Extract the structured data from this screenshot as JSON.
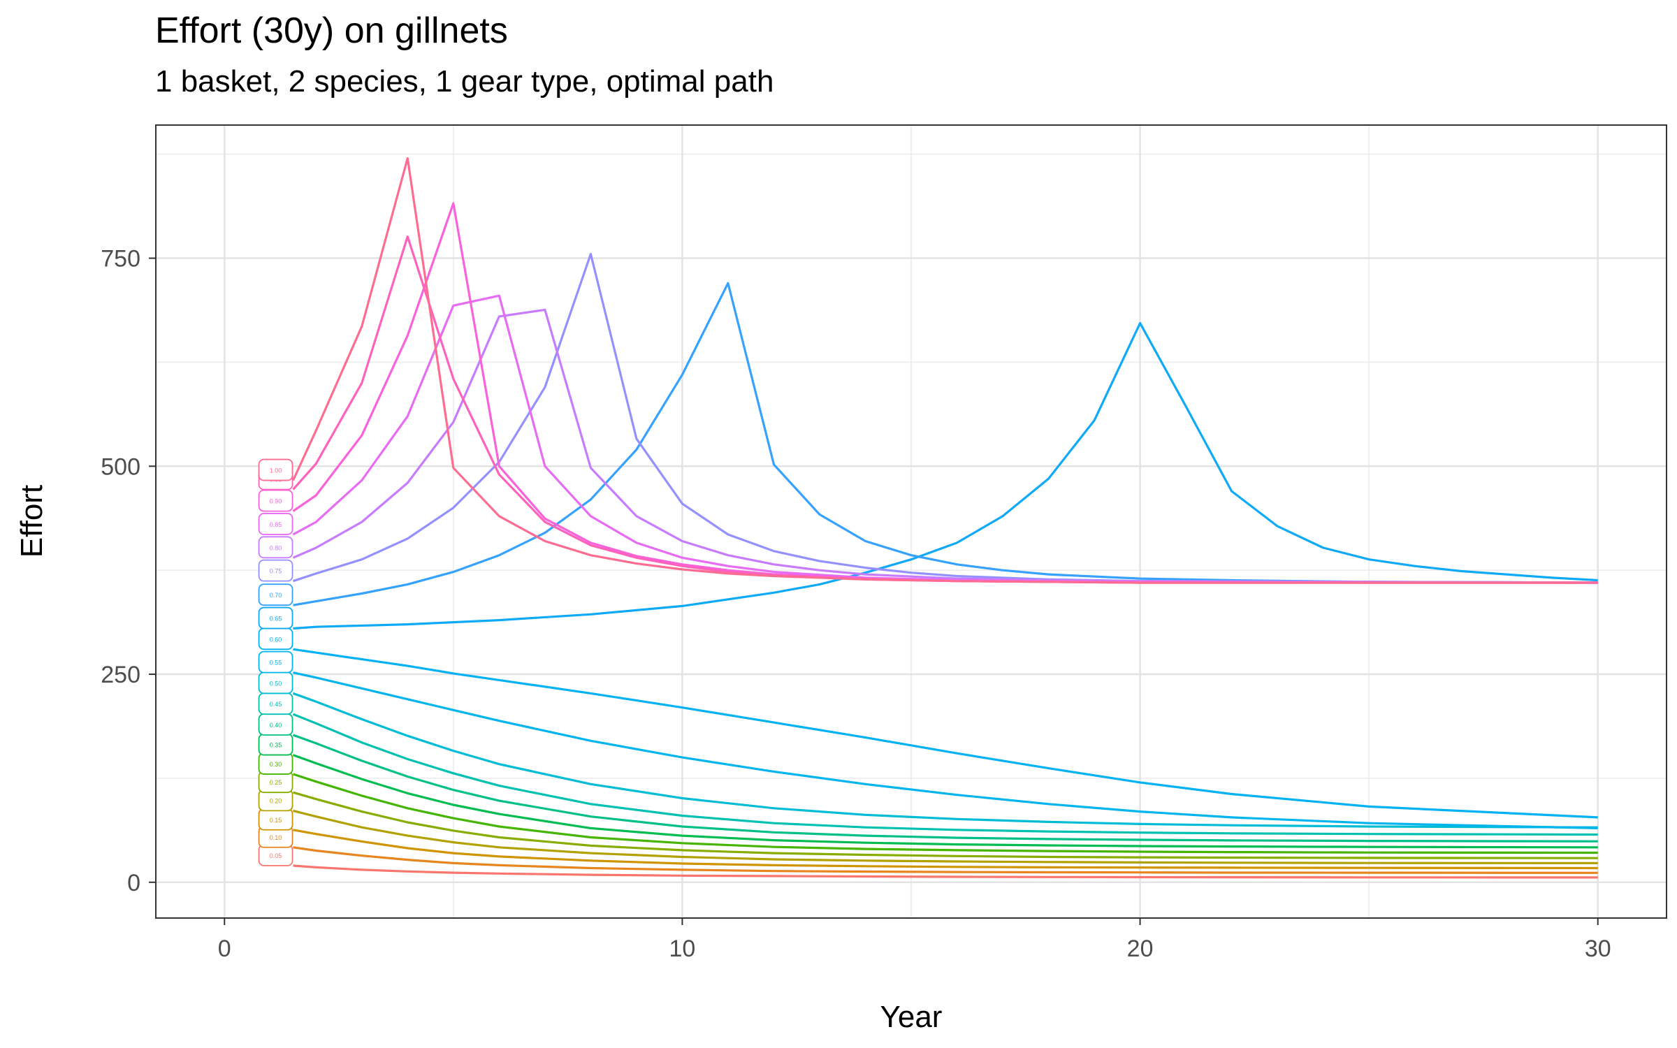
{
  "chart_data": {
    "type": "line",
    "title": "Effort (30y) on gillnets",
    "subtitle": "1 basket, 2 species, 1 gear type, optimal path",
    "xlabel": "Year",
    "ylabel": "Effort",
    "xlim": [
      -1.5,
      31.5
    ],
    "ylim": [
      -43,
      910
    ],
    "x_ticks": [
      0,
      10,
      20,
      30
    ],
    "y_ticks": [
      0,
      250,
      500,
      750
    ],
    "grid": true,
    "legend": "none",
    "series": [
      {
        "name": "0.05",
        "color": "#F8766D",
        "x": [
          1.5,
          2,
          3,
          4,
          5,
          6,
          8,
          10,
          12,
          14,
          16,
          18,
          20,
          22,
          25,
          30
        ],
        "values": [
          20,
          18,
          15,
          13,
          11.5,
          10.5,
          9,
          8,
          7.5,
          7,
          6.5,
          6.3,
          6.1,
          6,
          5.9,
          5.8
        ]
      },
      {
        "name": "0.10",
        "color": "#E7851E",
        "x": [
          1.5,
          2,
          3,
          4,
          5,
          6,
          8,
          10,
          12,
          14,
          16,
          18,
          20,
          22,
          25,
          30
        ],
        "values": [
          42,
          38,
          32,
          27,
          23,
          20.5,
          17,
          15,
          13.5,
          12.8,
          12.3,
          12,
          11.8,
          11.6,
          11.5,
          11.3
        ]
      },
      {
        "name": "0.15",
        "color": "#D09400",
        "x": [
          1.5,
          2,
          3,
          4,
          5,
          6,
          8,
          10,
          12,
          14,
          16,
          18,
          20,
          22,
          25,
          30
        ],
        "values": [
          63,
          58,
          49,
          41,
          35,
          31,
          26,
          22.5,
          20.5,
          19.3,
          18.5,
          18,
          17.7,
          17.5,
          17.3,
          17
        ]
      },
      {
        "name": "0.20",
        "color": "#B2A100",
        "x": [
          1.5,
          2,
          3,
          4,
          5,
          6,
          8,
          10,
          12,
          14,
          16,
          18,
          20,
          22,
          25,
          30
        ],
        "values": [
          86,
          79,
          66,
          56,
          48,
          42,
          35,
          30.5,
          27.5,
          26,
          25,
          24.3,
          23.8,
          23.5,
          23.2,
          23
        ]
      },
      {
        "name": "0.25",
        "color": "#89AC00",
        "x": [
          1.5,
          2,
          3,
          4,
          5,
          6,
          8,
          10,
          12,
          14,
          16,
          18,
          20,
          22,
          25,
          30
        ],
        "values": [
          108,
          100,
          85,
          72,
          62,
          54,
          44,
          38.5,
          35,
          33,
          31.5,
          30.5,
          30,
          29.6,
          29.3,
          29
        ]
      },
      {
        "name": "0.30",
        "color": "#45B500",
        "x": [
          1.5,
          2,
          3,
          4,
          5,
          6,
          8,
          10,
          12,
          14,
          16,
          18,
          20,
          22,
          25,
          30
        ],
        "values": [
          130,
          121,
          104,
          89,
          77,
          67,
          54,
          47,
          42.5,
          40,
          38.5,
          37.5,
          36.8,
          36.3,
          35.8,
          35.5
        ]
      },
      {
        "name": "0.35",
        "color": "#00BC51",
        "x": [
          1.5,
          2,
          3,
          4,
          5,
          6,
          8,
          10,
          12,
          14,
          16,
          18,
          20,
          22,
          25,
          30
        ],
        "values": [
          153,
          143,
          124,
          107,
          93,
          82,
          65,
          56,
          50.5,
          47.5,
          45.5,
          44.3,
          43.5,
          43,
          42.5,
          42
        ]
      },
      {
        "name": "0.40",
        "color": "#00C087",
        "x": [
          1.5,
          2,
          3,
          4,
          5,
          6,
          8,
          10,
          12,
          14,
          16,
          18,
          20,
          22,
          25,
          30
        ],
        "values": [
          177,
          167,
          146,
          127,
          111,
          98,
          79,
          67,
          60,
          56,
          53.5,
          52,
          51,
          50.3,
          49.7,
          49.2
        ]
      },
      {
        "name": "0.45",
        "color": "#00C0B2",
        "x": [
          1.5,
          2,
          3,
          4,
          5,
          6,
          8,
          10,
          12,
          14,
          16,
          18,
          20,
          22,
          25,
          30
        ],
        "values": [
          202,
          191,
          168,
          148,
          131,
          116,
          94,
          80,
          71,
          66,
          63,
          61,
          59.7,
          58.8,
          58,
          57.3
        ]
      },
      {
        "name": "0.50",
        "color": "#00BCD6",
        "x": [
          1.5,
          2,
          3,
          4,
          5,
          6,
          8,
          10,
          12,
          14,
          16,
          18,
          20,
          22,
          25,
          30
        ],
        "values": [
          227,
          217,
          196,
          176,
          158,
          142,
          118,
          101,
          89,
          81,
          76,
          72.5,
          70,
          68.5,
          67,
          66
        ]
      },
      {
        "name": "0.55",
        "color": "#00B5EE",
        "x": [
          1.5,
          2,
          3,
          4,
          5,
          6,
          8,
          10,
          12,
          14,
          16,
          18,
          20,
          22,
          25,
          30
        ],
        "values": [
          252,
          246,
          233,
          220,
          207,
          194,
          170,
          150,
          133,
          118,
          105,
          94,
          85,
          78,
          71,
          65
        ]
      },
      {
        "name": "0.60",
        "color": "#00B2F3",
        "x": [
          1.5,
          2,
          3,
          4,
          5,
          6,
          8,
          10,
          12,
          14,
          16,
          18,
          20,
          22,
          25,
          30
        ],
        "values": [
          280,
          276,
          268,
          260,
          251,
          243,
          227,
          210,
          192,
          174,
          155,
          137,
          120,
          106,
          91,
          78
        ]
      },
      {
        "name": "0.65",
        "color": "#0EAAF8",
        "x": [
          1.5,
          2,
          4,
          6,
          8,
          10,
          12,
          13,
          14,
          15,
          16,
          17,
          18,
          19,
          20,
          21,
          22,
          23,
          24,
          25,
          26,
          27,
          28,
          29,
          30
        ],
        "values": [
          305,
          307,
          310,
          315,
          322,
          332,
          348,
          358,
          372,
          388,
          408,
          440,
          485,
          555,
          672,
          572,
          470,
          428,
          402,
          388,
          380,
          374,
          370,
          366,
          363
        ]
      },
      {
        "name": "0.70",
        "color": "#35A2FF",
        "x": [
          1.5,
          3,
          4,
          5,
          6,
          7,
          8,
          9,
          10,
          11,
          12,
          13,
          14,
          15,
          16,
          17,
          18,
          20,
          22,
          25,
          30
        ],
        "values": [
          333,
          347,
          358,
          373,
          393,
          420,
          460,
          520,
          610,
          720,
          502,
          442,
          410,
          393,
          382,
          375,
          370,
          365,
          363,
          361,
          360
        ]
      },
      {
        "name": "0.75",
        "color": "#9590FF",
        "x": [
          1.5,
          2,
          3,
          4,
          5,
          6,
          7,
          8,
          9,
          10,
          11,
          12,
          13,
          14,
          15,
          16,
          18,
          20,
          25,
          30
        ],
        "values": [
          362,
          371,
          388,
          413,
          450,
          505,
          595,
          755,
          533,
          455,
          418,
          398,
          386,
          378,
          372,
          368,
          364,
          362,
          361,
          360
        ]
      },
      {
        "name": "0.80",
        "color": "#C77CFF",
        "x": [
          1.5,
          2,
          3,
          4,
          5,
          6,
          7,
          8,
          9,
          10,
          11,
          12,
          13,
          14,
          16,
          18,
          20,
          25,
          30
        ],
        "values": [
          390,
          402,
          433,
          480,
          553,
          680,
          688,
          498,
          440,
          410,
          393,
          382,
          375,
          370,
          365,
          363,
          362,
          361,
          360
        ]
      },
      {
        "name": "0.85",
        "color": "#E76BF3",
        "x": [
          1.5,
          2,
          3,
          4,
          5,
          6,
          7,
          8,
          9,
          10,
          11,
          12,
          14,
          16,
          18,
          20,
          25,
          30
        ],
        "values": [
          418,
          433,
          483,
          560,
          693,
          705,
          500,
          440,
          408,
          390,
          380,
          373,
          366,
          363,
          362,
          361,
          360,
          360
        ]
      },
      {
        "name": "0.90",
        "color": "#FA62DB",
        "x": [
          1.5,
          2,
          3,
          4,
          5,
          6,
          7,
          8,
          9,
          10,
          11,
          12,
          14,
          16,
          18,
          20,
          25,
          30
        ],
        "values": [
          446,
          465,
          537,
          657,
          816,
          500,
          437,
          408,
          392,
          382,
          375,
          370,
          365,
          362,
          361,
          360,
          360,
          360
        ]
      },
      {
        "name": "0.95",
        "color": "#FF62BC",
        "x": [
          1.5,
          2,
          3,
          4,
          5,
          6,
          7,
          8,
          9,
          10,
          11,
          12,
          14,
          16,
          18,
          20,
          25,
          30
        ],
        "values": [
          472,
          503,
          600,
          776,
          605,
          490,
          433,
          405,
          390,
          380,
          373,
          369,
          364,
          362,
          361,
          360,
          360,
          360
        ]
      },
      {
        "name": "1.00",
        "color": "#FF6C91",
        "x": [
          1.5,
          2,
          3,
          4,
          5,
          6,
          7,
          8,
          9,
          10,
          11,
          12,
          14,
          16,
          18,
          20,
          25,
          30
        ],
        "values": [
          483,
          543,
          668,
          870,
          498,
          440,
          410,
          393,
          383,
          376,
          371,
          368,
          364,
          362,
          361,
          360,
          360,
          360
        ]
      }
    ]
  }
}
